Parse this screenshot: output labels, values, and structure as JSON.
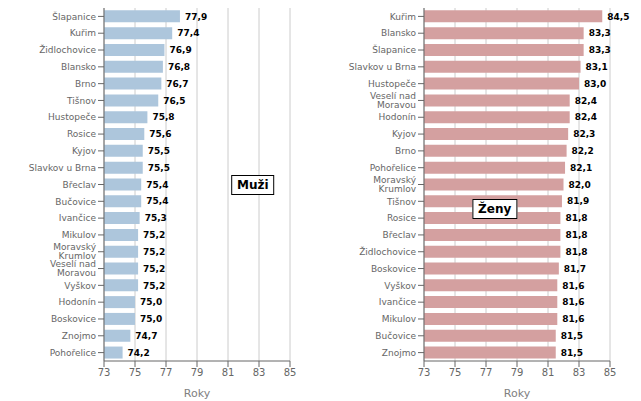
{
  "chart_data": [
    {
      "type": "bar",
      "orientation": "horizontal",
      "annotations": [
        "Muži"
      ],
      "xlabel": "Roky",
      "categories": [
        "Šlapanice",
        "Kuřim",
        "Židlochovice",
        "Blansko",
        "Brno",
        "Tišnov",
        "Hustopeče",
        "Rosice",
        "Kyjov",
        "Slavkov u Brna",
        "Břeclav",
        "Bučovice",
        "Ivančice",
        "Mikulov",
        "Moravský Krumlov",
        "Veselí nad Moravou",
        "Vyškov",
        "Hodonín",
        "Boskovice",
        "Znojmo",
        "Pohořelice"
      ],
      "values": [
        77.9,
        77.4,
        76.9,
        76.8,
        76.7,
        76.5,
        75.8,
        75.6,
        75.5,
        75.5,
        75.4,
        75.4,
        75.3,
        75.2,
        75.2,
        75.2,
        75.2,
        75.0,
        75.0,
        74.7,
        74.2
      ],
      "value_labels": [
        "77,9",
        "77,4",
        "76,9",
        "76,8",
        "76,7",
        "76,5",
        "75,8",
        "75,6",
        "75,5",
        "75,5",
        "75,4",
        "75,4",
        "75,3",
        "75,2",
        "75,2",
        "75,2",
        "75,2",
        "75,0",
        "75,0",
        "74,7",
        "74,2"
      ],
      "data_labels": true,
      "color": "#adc6dc",
      "xlim": [
        73,
        85
      ],
      "xticks": [
        73,
        75,
        77,
        79,
        81,
        83,
        85
      ],
      "grid": true
    },
    {
      "type": "bar",
      "orientation": "horizontal",
      "annotations": [
        "Ženy"
      ],
      "xlabel": "Roky",
      "categories": [
        "Kuřim",
        "Blansko",
        "Šlapanice",
        "Slavkov u Brna",
        "Hustopeče",
        "Veselí nad Moravou",
        "Hodonín",
        "Kyjov",
        "Brno",
        "Pohořelice",
        "Moravský Krumlov",
        "Tišnov",
        "Rosice",
        "Břeclav",
        "Židlochovice",
        "Boskovice",
        "Vyškov",
        "Ivančice",
        "Mikulov",
        "Bučovice",
        "Znojmo"
      ],
      "values": [
        84.5,
        83.3,
        83.3,
        83.1,
        83.0,
        82.4,
        82.4,
        82.3,
        82.2,
        82.1,
        82.0,
        81.9,
        81.8,
        81.8,
        81.8,
        81.7,
        81.6,
        81.6,
        81.6,
        81.5,
        81.5
      ],
      "value_labels": [
        "84,5",
        "83,3",
        "83,3",
        "83,1",
        "83,0",
        "82,4",
        "82,4",
        "82,3",
        "82,2",
        "82,1",
        "82,0",
        "81,9",
        "81,8",
        "81,8",
        "81,8",
        "81,7",
        "81,6",
        "81,6",
        "81,6",
        "81,5",
        "81,5"
      ],
      "data_labels": true,
      "color": "#d4a0a0",
      "xlim": [
        73,
        85
      ],
      "xticks": [
        73,
        75,
        77,
        79,
        81,
        83,
        85
      ],
      "grid": true
    }
  ]
}
